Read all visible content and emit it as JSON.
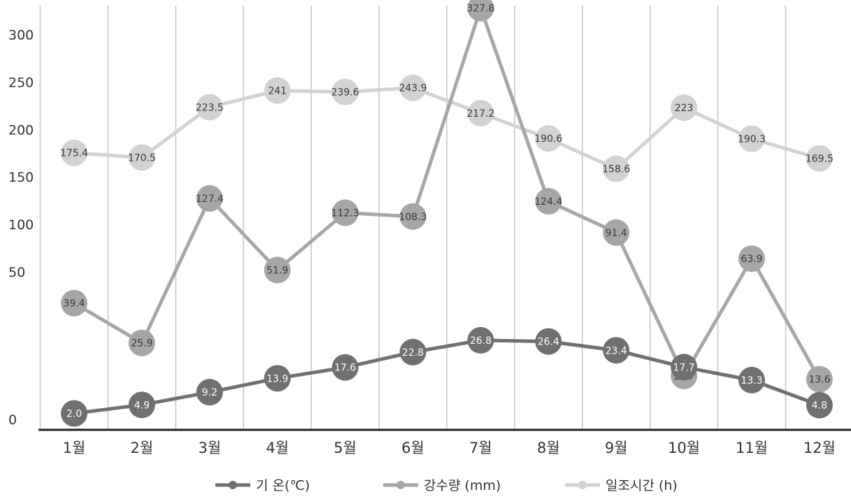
{
  "chart_data": {
    "type": "line",
    "categories": [
      "1월",
      "2월",
      "3월",
      "4월",
      "5월",
      "6월",
      "7월",
      "8월",
      "9월",
      "10월",
      "11월",
      "12월"
    ],
    "y_ticks": [
      "0",
      "50",
      "100",
      "150",
      "200",
      "250",
      "300"
    ],
    "grid": "vertical",
    "legend_position": "bottom",
    "series": [
      {
        "name": "기  온(℃)",
        "color": "#707070",
        "labels": [
          "2.0",
          "4.9",
          "9.2",
          "13.9",
          "17.6",
          "22.8",
          "26.8",
          "26.4",
          "23.4",
          "17.7",
          "13.3",
          "4.8"
        ],
        "values": [
          2.0,
          4.9,
          9.2,
          13.9,
          17.6,
          22.8,
          26.8,
          26.4,
          23.4,
          17.7,
          13.3,
          4.8
        ]
      },
      {
        "name": "강수량 (mm)",
        "color": "#a6a6a6",
        "labels": [
          "39.4",
          "25.9",
          "127.4",
          "51.9",
          "112.3",
          "108.3",
          "327.8",
          "124.4",
          "91.4",
          "14.7",
          "63.9",
          "13.6"
        ],
        "values": [
          39.4,
          25.9,
          127.4,
          51.9,
          112.3,
          108.3,
          327.8,
          124.4,
          91.4,
          14.7,
          63.9,
          13.6
        ]
      },
      {
        "name": "일조시간 (h)",
        "color": "#d2d2d2",
        "labels": [
          "175.4",
          "170.5",
          "223.5",
          "241",
          "239.6",
          "243.9",
          "217.2",
          "190.6",
          "158.6",
          "223",
          "190.3",
          "169.5"
        ],
        "values": [
          175.4,
          170.5,
          223.5,
          241,
          239.6,
          243.9,
          217.2,
          190.6,
          158.6,
          223,
          190.3,
          169.5
        ]
      }
    ]
  }
}
